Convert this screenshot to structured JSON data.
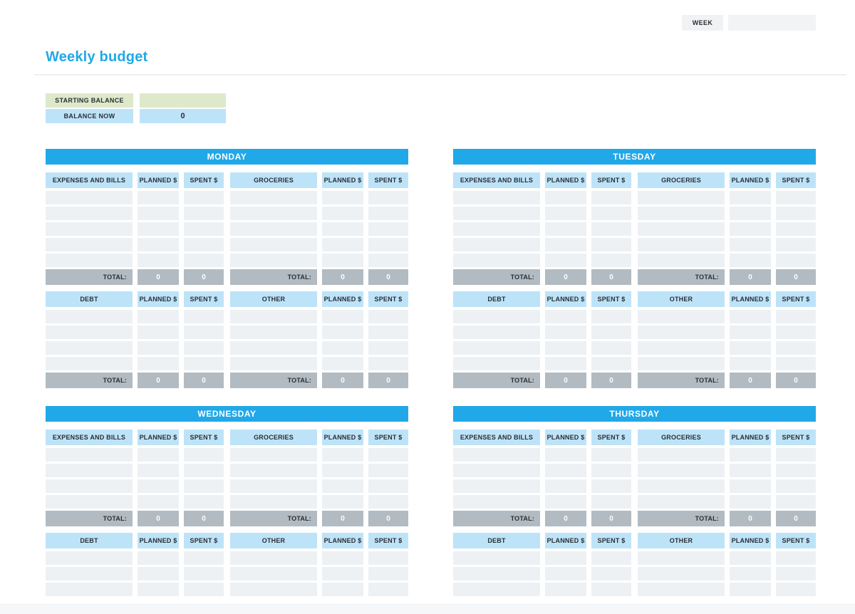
{
  "header": {
    "week_label": "WEEK",
    "week_value": ""
  },
  "page": {
    "title": "Weekly budget"
  },
  "balance": {
    "starting_label": "STARTING BALANCE",
    "starting_value": "",
    "now_label": "BALANCE NOW",
    "now_value": "0"
  },
  "table_labels": {
    "planned": "PLANNED $",
    "spent": "SPENT $",
    "total": "TOTAL:"
  },
  "days": [
    {
      "name": "MONDAY",
      "sections": [
        {
          "category_left": "EXPENSES AND BILLS",
          "category_right": "GROCERIES",
          "empty_rows": 5,
          "show_total": true,
          "totals": [
            "0",
            "0",
            "0",
            "0"
          ]
        },
        {
          "category_left": "DEBT",
          "category_right": "OTHER",
          "empty_rows": 4,
          "show_total": true,
          "totals": [
            "0",
            "0",
            "0",
            "0"
          ]
        }
      ]
    },
    {
      "name": "TUESDAY",
      "sections": [
        {
          "category_left": "EXPENSES AND BILLS",
          "category_right": "GROCERIES",
          "empty_rows": 5,
          "show_total": true,
          "totals": [
            "0",
            "0",
            "0",
            "0"
          ]
        },
        {
          "category_left": "DEBT",
          "category_right": "OTHER",
          "empty_rows": 4,
          "show_total": true,
          "totals": [
            "0",
            "0",
            "0",
            "0"
          ]
        }
      ]
    },
    {
      "name": "WEDNESDAY",
      "sections": [
        {
          "category_left": "EXPENSES AND BILLS",
          "category_right": "GROCERIES",
          "empty_rows": 4,
          "show_total": true,
          "totals": [
            "0",
            "0",
            "0",
            "0"
          ]
        },
        {
          "category_left": "DEBT",
          "category_right": "OTHER",
          "empty_rows": 3,
          "show_total": false,
          "totals": []
        }
      ]
    },
    {
      "name": "THURSDAY",
      "sections": [
        {
          "category_left": "EXPENSES AND BILLS",
          "category_right": "GROCERIES",
          "empty_rows": 4,
          "show_total": true,
          "totals": [
            "0",
            "0",
            "0",
            "0"
          ]
        },
        {
          "category_left": "DEBT",
          "category_right": "OTHER",
          "empty_rows": 3,
          "show_total": false,
          "totals": []
        }
      ]
    }
  ],
  "colors": {
    "accent_blue": "#21A8E8",
    "light_blue": "#BDE3F8",
    "row_gray": "#EDF1F4",
    "total_gray": "#B2BBC2",
    "green": "#DEE9CB",
    "box_gray": "#F0F2F4",
    "box_gray_light": "#F1F3F5",
    "footer_gray": "#F5F7F8",
    "text_dark": "#2A2F34"
  }
}
